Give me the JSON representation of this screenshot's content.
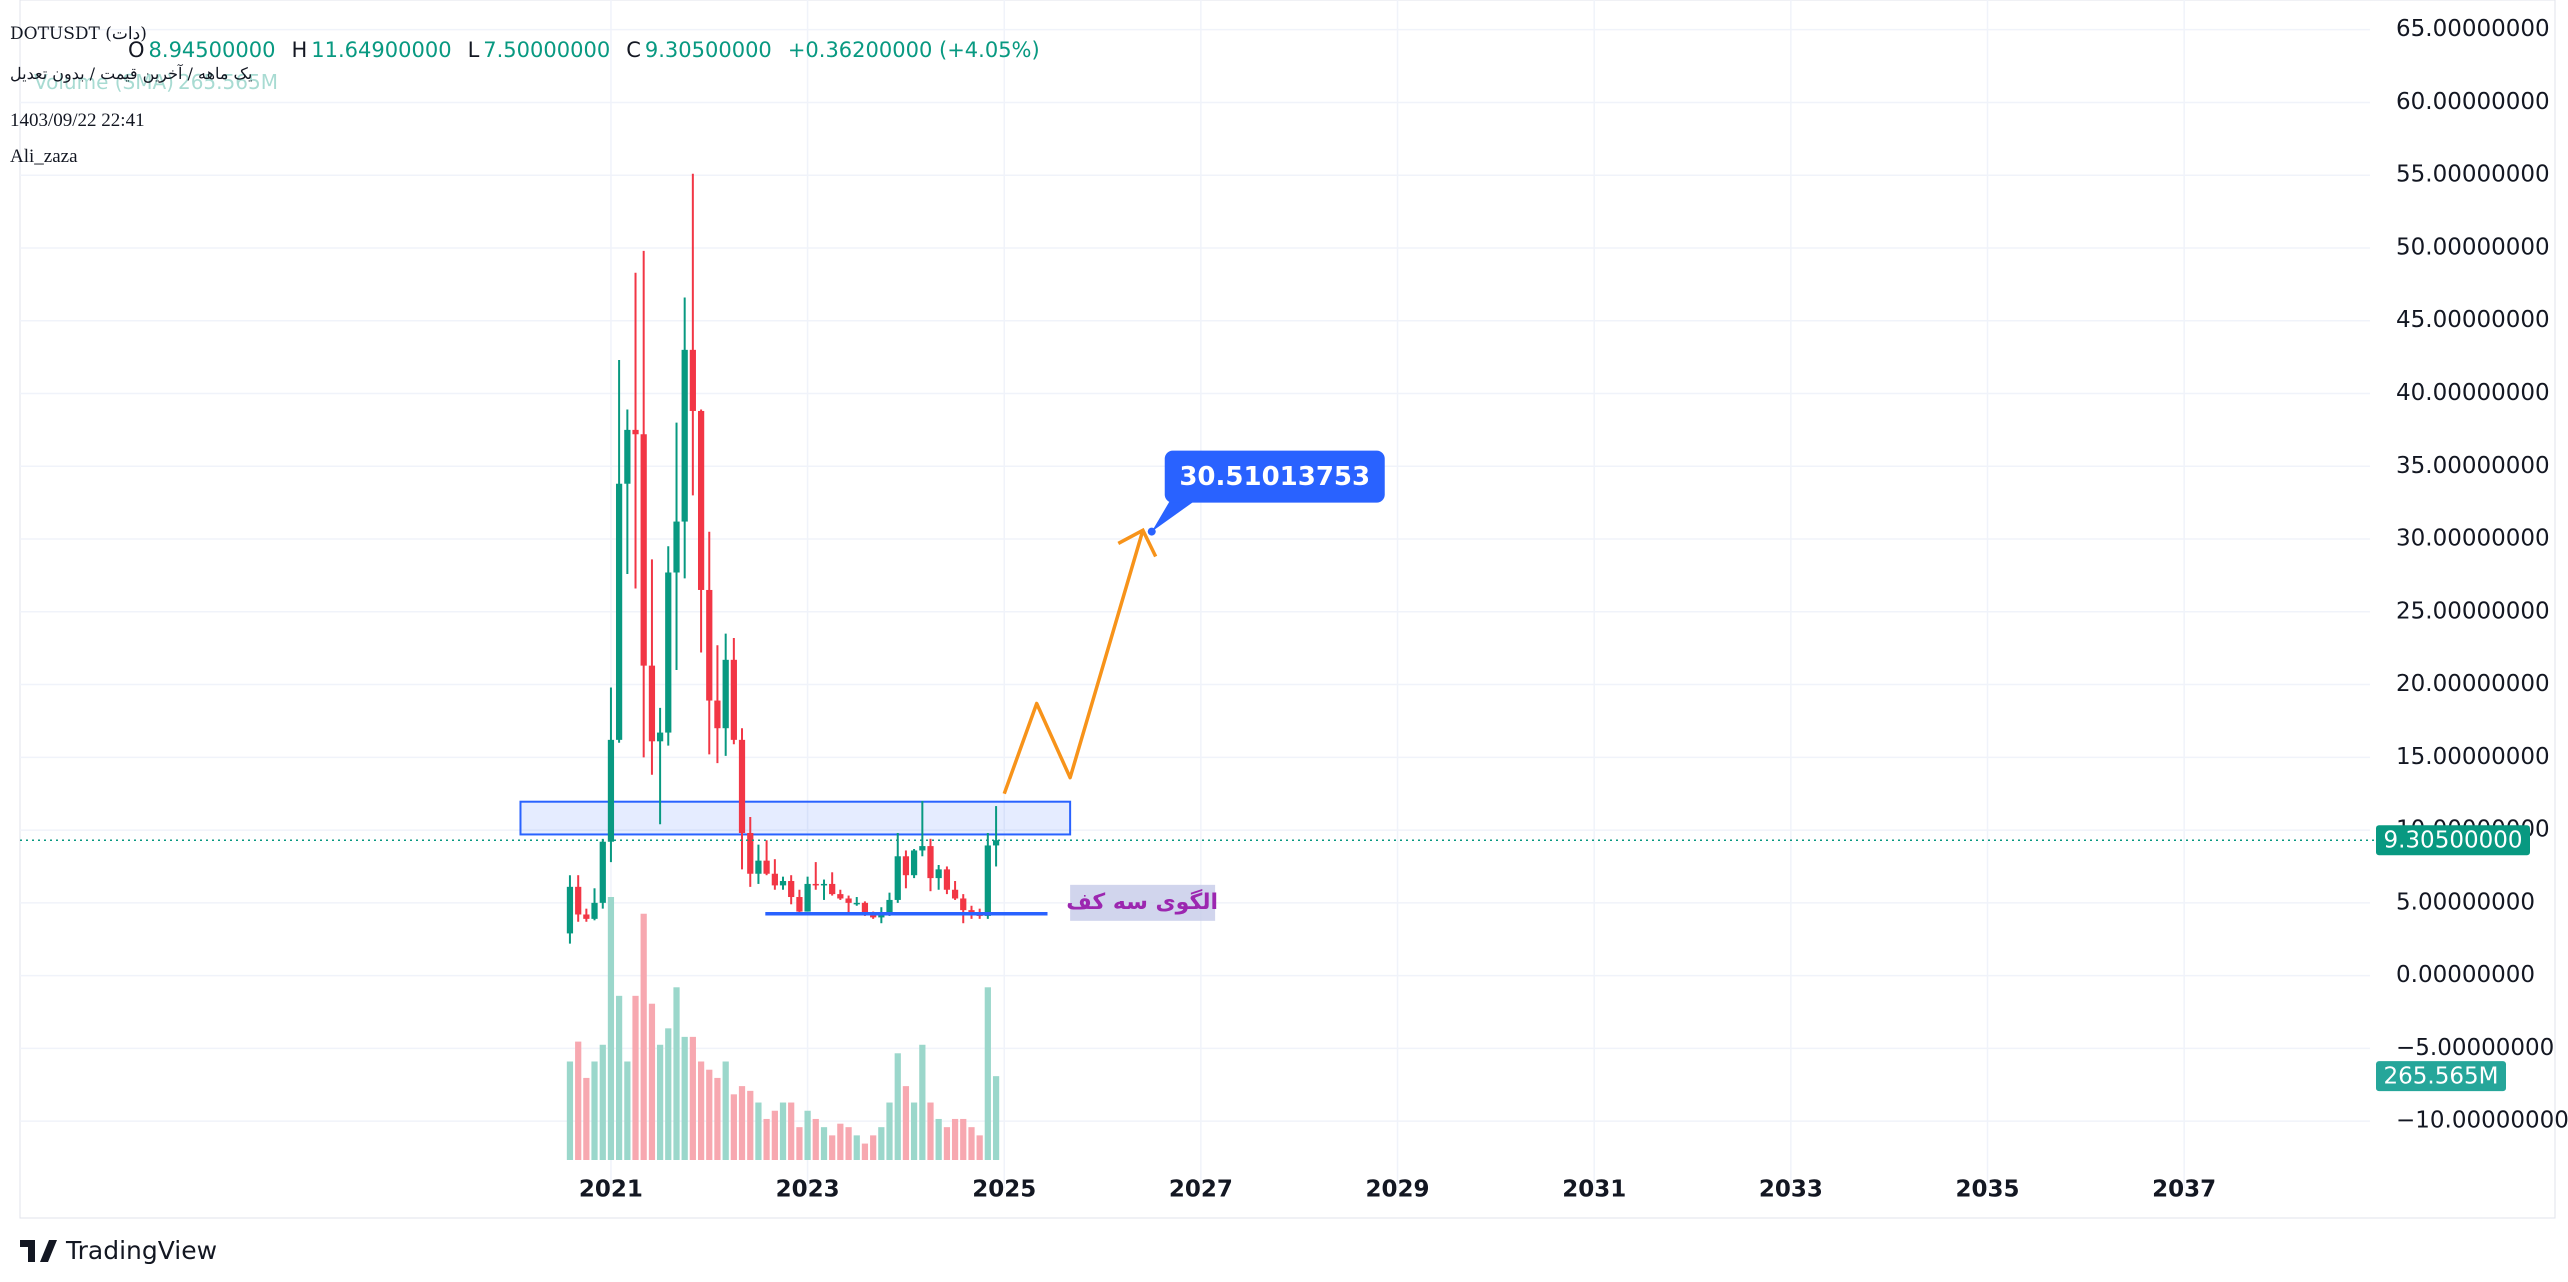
{
  "chart_data": {
    "type": "candlestick",
    "title": "DOTUSDT (دات)",
    "subtitle": "یک ماهه / آخرین قیمت / بدون تعدیل",
    "date_text": "1403/09/22 22:41",
    "author": "Ali_zaza",
    "brand": "TradingView",
    "ohlc_legend": [
      {
        "key": "O",
        "value": "8.94500000"
      },
      {
        "key": "H",
        "value": "11.64900000"
      },
      {
        "key": "L",
        "value": "7.50000000"
      },
      {
        "key": "C",
        "value": "9.30500000"
      }
    ],
    "change_text": "+0.36200000 (+4.05%)",
    "x": [
      2020.583,
      2020.667,
      2020.75,
      2020.833,
      2020.917,
      2021,
      2021.083,
      2021.167,
      2021.25,
      2021.333,
      2021.417,
      2021.5,
      2021.583,
      2021.667,
      2021.75,
      2021.833,
      2021.917,
      2022,
      2022.083,
      2022.167,
      2022.25,
      2022.333,
      2022.417,
      2022.5,
      2022.583,
      2022.667,
      2022.75,
      2022.833,
      2022.917,
      2023,
      2023.083,
      2023.167,
      2023.25,
      2023.333,
      2023.417,
      2023.5,
      2023.583,
      2023.667,
      2023.75,
      2023.833,
      2023.917,
      2024,
      2024.083,
      2024.167,
      2024.25,
      2024.333,
      2024.417,
      2024.5,
      2024.583,
      2024.667,
      2024.75,
      2024.833,
      2024.917
    ],
    "open": [
      2.9,
      6.1,
      4.2,
      3.9,
      5.0,
      9.2,
      16.2,
      33.8,
      37.5,
      37.2,
      21.3,
      16.1,
      16.7,
      27.7,
      31.2,
      43.0,
      38.8,
      26.5,
      18.9,
      17.0,
      21.7,
      16.2,
      9.8,
      7.0,
      7.9,
      7.0,
      6.2,
      6.5,
      5.4,
      4.4,
      6.3,
      6.2,
      6.3,
      5.6,
      5.3,
      5.0,
      5.0,
      4.3,
      4.0,
      4.2,
      5.2,
      8.2,
      6.9,
      8.6,
      8.9,
      6.7,
      7.3,
      5.9,
      5.3,
      4.5,
      4.3,
      4.1,
      8.945
    ],
    "high": [
      6.9,
      6.9,
      4.6,
      6.0,
      9.4,
      19.8,
      42.3,
      38.9,
      48.3,
      49.8,
      28.6,
      18.4,
      29.5,
      38.0,
      46.6,
      55.1,
      38.9,
      30.5,
      22.7,
      23.5,
      23.2,
      17.0,
      10.9,
      9.0,
      9.3,
      8.0,
      6.8,
      6.9,
      5.9,
      6.8,
      7.8,
      6.6,
      7.1,
      5.9,
      5.5,
      5.4,
      5.1,
      4.4,
      4.7,
      5.7,
      9.8,
      8.6,
      8.7,
      12.0,
      9.4,
      7.6,
      7.5,
      6.5,
      5.6,
      4.8,
      4.6,
      9.8,
      11.649
    ],
    "low": [
      2.2,
      3.7,
      3.7,
      3.8,
      4.6,
      7.8,
      16.0,
      27.6,
      26.6,
      15.0,
      13.8,
      10.4,
      15.8,
      21.0,
      27.3,
      33.0,
      22.2,
      15.2,
      14.6,
      15.1,
      15.9,
      7.3,
      6.1,
      6.3,
      6.9,
      5.9,
      5.9,
      4.9,
      4.2,
      4.4,
      5.9,
      5.2,
      5.5,
      5.2,
      4.2,
      4.8,
      4.1,
      3.9,
      3.6,
      4.1,
      5.0,
      6.0,
      6.7,
      8.2,
      5.8,
      5.9,
      5.6,
      5.2,
      3.6,
      3.9,
      3.9,
      3.9,
      7.5
    ],
    "close": [
      6.1,
      4.2,
      3.9,
      5.0,
      9.2,
      16.2,
      33.8,
      37.5,
      37.2,
      21.3,
      16.1,
      16.7,
      27.7,
      31.2,
      43.0,
      38.8,
      26.5,
      18.9,
      17.0,
      21.7,
      16.2,
      9.8,
      7.0,
      7.9,
      7.0,
      6.2,
      6.5,
      5.4,
      4.4,
      6.3,
      6.2,
      6.3,
      5.6,
      5.3,
      5.0,
      5.0,
      4.3,
      4.0,
      4.2,
      5.2,
      8.2,
      6.9,
      8.6,
      8.9,
      6.7,
      7.3,
      5.9,
      5.3,
      4.5,
      4.3,
      4.1,
      8.943,
      9.305
    ],
    "close_last_label": "9.30500000",
    "volume": {
      "name": "Volume (SMA)",
      "values": [
        312,
        375,
        260,
        312,
        365,
        833,
        520,
        312,
        520,
        780,
        495,
        365,
        417,
        547,
        390,
        390,
        312,
        286,
        260,
        312,
        208,
        234,
        219,
        182,
        130,
        156,
        182,
        182,
        104,
        156,
        130,
        104,
        78,
        115,
        104,
        78,
        52,
        78,
        104,
        182,
        338,
        234,
        182,
        365,
        182,
        130,
        104,
        130,
        130,
        104,
        78,
        547,
        265.565
      ],
      "last_label": "265.565M",
      "up_color": "#9bd7cb",
      "down_color": "#f7a8b0"
    },
    "up_color": "#089981",
    "down_color": "#f23645",
    "xlim": [
      2014.99,
      2038.89
    ],
    "xticks": [
      2021,
      2023,
      2025,
      2027,
      2029,
      2031,
      2033,
      2035,
      2037
    ],
    "ylim": [
      -16.45,
      67.04
    ],
    "yticks": [
      {
        "value": -10,
        "label": "−10.00000000"
      },
      {
        "value": -5,
        "label": "−5.00000000"
      },
      {
        "value": 0,
        "label": "0.00000000"
      },
      {
        "value": 5,
        "label": "5.00000000"
      },
      {
        "value": 10,
        "label": "10.00000000"
      },
      {
        "value": 15,
        "label": "15.00000000"
      },
      {
        "value": 20,
        "label": "20.00000000"
      },
      {
        "value": 25,
        "label": "25.00000000"
      },
      {
        "value": 30,
        "label": "30.00000000"
      },
      {
        "value": 35,
        "label": "35.00000000"
      },
      {
        "value": 40,
        "label": "40.00000000"
      },
      {
        "value": 45,
        "label": "45.00000000"
      },
      {
        "value": 50,
        "label": "50.00000000"
      },
      {
        "value": 55,
        "label": "55.00000000"
      },
      {
        "value": 60,
        "label": "60.00000000"
      },
      {
        "value": 65,
        "label": "65.00000000"
      }
    ],
    "grid": true,
    "drawings": {
      "zone": {
        "x": [
          2020.08,
          2025.67
        ],
        "y": [
          9.7,
          11.95
        ],
        "color": "#2962ff"
      },
      "support": {
        "x": [
          2022.57,
          2025.44
        ],
        "y": 4.25,
        "color": "#2962ff"
      },
      "path": {
        "x": [
          2025.0,
          2025.33,
          2025.67,
          2026.41
        ],
        "y": [
          12.5,
          18.7,
          13.6,
          30.6
        ],
        "color": "#f7931a"
      },
      "arrowhead": {
        "x": [
          2026.16,
          2026.41,
          2026.54
        ],
        "y": [
          29.7,
          30.6,
          28.8
        ]
      },
      "target": {
        "x": 2026.5,
        "value": 30.51013753,
        "color": "#2962ff"
      },
      "pattern_label": {
        "text": "الگوی سه کف",
        "x": 2025.67,
        "y": 5.0,
        "color": "#9c27b0"
      }
    }
  }
}
